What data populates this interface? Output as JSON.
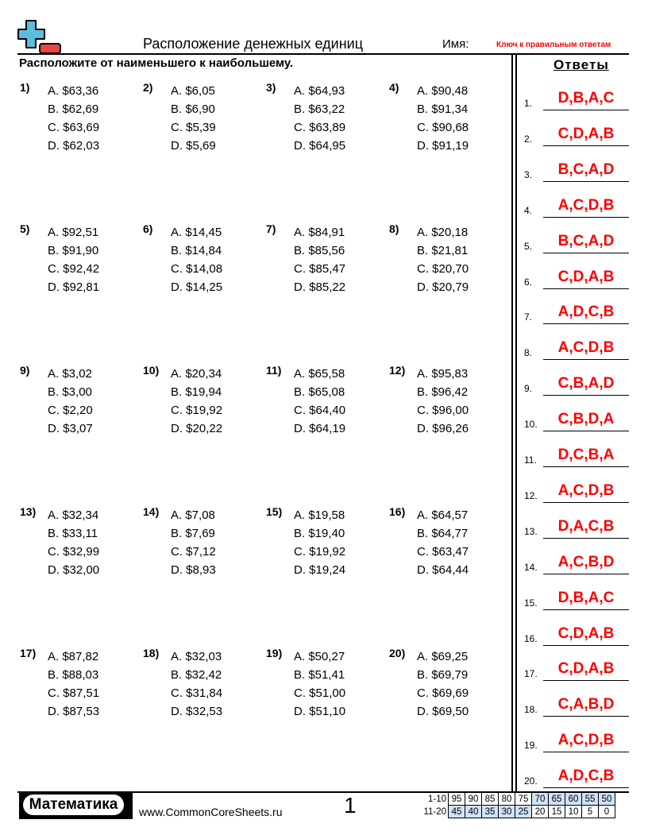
{
  "header": {
    "title": "Расположение денежных единиц",
    "name_label": "Имя:",
    "answer_key_label": "Ключ к правильным ответам",
    "logo": "plus-minus-logo"
  },
  "instructions": "Расположите от наименьшего к наибольшему.",
  "problems": [
    {
      "num": "1)",
      "options": [
        "A. $63,36",
        "B. $62,69",
        "C. $63,69",
        "D. $62,03"
      ]
    },
    {
      "num": "2)",
      "options": [
        "A. $6,05",
        "B. $6,90",
        "C. $5,39",
        "D. $5,69"
      ]
    },
    {
      "num": "3)",
      "options": [
        "A. $64,93",
        "B. $63,22",
        "C. $63,89",
        "D. $64,95"
      ]
    },
    {
      "num": "4)",
      "options": [
        "A. $90,48",
        "B. $91,34",
        "C. $90,68",
        "D. $91,19"
      ]
    },
    {
      "num": "5)",
      "options": [
        "A. $92,51",
        "B. $91,90",
        "C. $92,42",
        "D. $92,81"
      ]
    },
    {
      "num": "6)",
      "options": [
        "A. $14,45",
        "B. $14,84",
        "C. $14,08",
        "D. $14,25"
      ]
    },
    {
      "num": "7)",
      "options": [
        "A. $84,91",
        "B. $85,56",
        "C. $85,47",
        "D. $85,22"
      ]
    },
    {
      "num": "8)",
      "options": [
        "A. $20,18",
        "B. $21,81",
        "C. $20,70",
        "D. $20,79"
      ]
    },
    {
      "num": "9)",
      "options": [
        "A. $3,02",
        "B. $3,00",
        "C. $2,20",
        "D. $3,07"
      ]
    },
    {
      "num": "10)",
      "options": [
        "A. $20,34",
        "B. $19,94",
        "C. $19,92",
        "D. $20,22"
      ]
    },
    {
      "num": "11)",
      "options": [
        "A. $65,58",
        "B. $65,08",
        "C. $64,40",
        "D. $64,19"
      ]
    },
    {
      "num": "12)",
      "options": [
        "A. $95,83",
        "B. $96,42",
        "C. $96,00",
        "D. $96,26"
      ]
    },
    {
      "num": "13)",
      "options": [
        "A. $32,34",
        "B. $33,11",
        "C. $32,99",
        "D. $32,00"
      ]
    },
    {
      "num": "14)",
      "options": [
        "A. $7,08",
        "B. $7,69",
        "C. $7,12",
        "D. $8,93"
      ]
    },
    {
      "num": "15)",
      "options": [
        "A. $19,58",
        "B. $19,40",
        "C. $19,92",
        "D. $19,24"
      ]
    },
    {
      "num": "16)",
      "options": [
        "A. $64,57",
        "B. $64,77",
        "C. $63,47",
        "D. $64,44"
      ]
    },
    {
      "num": "17)",
      "options": [
        "A. $87,82",
        "B. $88,03",
        "C. $87,51",
        "D. $87,53"
      ]
    },
    {
      "num": "18)",
      "options": [
        "A. $32,03",
        "B. $32,42",
        "C. $31,84",
        "D. $32,53"
      ]
    },
    {
      "num": "19)",
      "options": [
        "A. $50,27",
        "B. $51,41",
        "C. $51,00",
        "D. $51,10"
      ]
    },
    {
      "num": "20)",
      "options": [
        "A. $69,25",
        "B. $69,79",
        "C. $69,69",
        "D. $69,50"
      ]
    }
  ],
  "answers": {
    "heading": "Ответы",
    "items": [
      {
        "num": "1.",
        "value": "D,B,A,C"
      },
      {
        "num": "2.",
        "value": "C,D,A,B"
      },
      {
        "num": "3.",
        "value": "B,C,A,D"
      },
      {
        "num": "4.",
        "value": "A,C,D,B"
      },
      {
        "num": "5.",
        "value": "B,C,A,D"
      },
      {
        "num": "6.",
        "value": "C,D,A,B"
      },
      {
        "num": "7.",
        "value": "A,D,C,B"
      },
      {
        "num": "8.",
        "value": "A,C,D,B"
      },
      {
        "num": "9.",
        "value": "C,B,A,D"
      },
      {
        "num": "10.",
        "value": "C,B,D,A"
      },
      {
        "num": "11.",
        "value": "D,C,B,A"
      },
      {
        "num": "12.",
        "value": "A,C,D,B"
      },
      {
        "num": "13.",
        "value": "D,A,C,B"
      },
      {
        "num": "14.",
        "value": "A,C,B,D"
      },
      {
        "num": "15.",
        "value": "D,B,A,C"
      },
      {
        "num": "16.",
        "value": "C,D,A,B"
      },
      {
        "num": "17.",
        "value": "C,D,A,B"
      },
      {
        "num": "18.",
        "value": "C,A,B,D"
      },
      {
        "num": "19.",
        "value": "A,C,D,B"
      },
      {
        "num": "20.",
        "value": "A,D,C,B"
      }
    ]
  },
  "footer": {
    "badge": "Математика",
    "site": "www.CommonCoreSheets.ru",
    "page": "1",
    "score_rows": [
      {
        "label": "1-10",
        "cells": [
          "95",
          "90",
          "85",
          "80",
          "75",
          "70",
          "65",
          "60",
          "55",
          "50"
        ],
        "highlight_from": 5
      },
      {
        "label": "11-20",
        "cells": [
          "45",
          "40",
          "35",
          "30",
          "25",
          "20",
          "15",
          "10",
          "5",
          "0"
        ],
        "highlight_to": 4
      }
    ]
  },
  "colors": {
    "answer": "#ff0000",
    "logo_plus": "#5bbde0",
    "logo_minus": "#e84545",
    "score_highlight": "#cfe2f8"
  }
}
